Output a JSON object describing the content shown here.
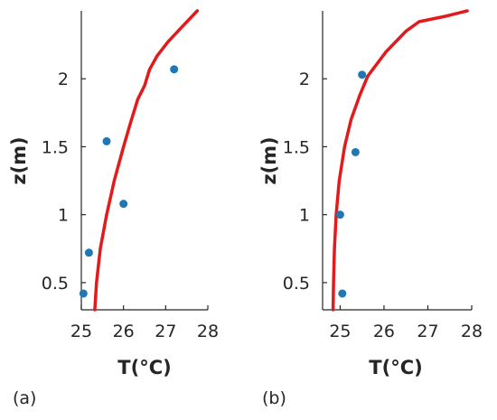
{
  "colors": {
    "model_line": "#e31a1c",
    "observation_marker": "#1f77b4",
    "axis": "#262626"
  },
  "chart_data": [
    {
      "type": "line",
      "panel_label": "(a)",
      "xlabel": "T(°C)",
      "ylabel": "z(m)",
      "xlim": [
        25,
        28
      ],
      "ylim": [
        0.3,
        2.5
      ],
      "xticks": [
        25,
        26,
        27,
        28
      ],
      "xtick_labels": [
        "25",
        "26",
        "27",
        "28"
      ],
      "yticks": [
        0.5,
        1,
        1.5,
        2
      ],
      "ytick_labels": [
        "0.5",
        "1",
        "1.5",
        "2"
      ],
      "grid": false,
      "series": [
        {
          "kind": "line",
          "x": [
            25.32,
            25.36,
            25.45,
            25.6,
            25.78,
            26.0,
            26.17,
            26.34,
            26.5,
            26.62,
            26.8,
            27.05,
            27.35,
            27.75
          ],
          "y": [
            0.3,
            0.5,
            0.75,
            1.0,
            1.25,
            1.5,
            1.68,
            1.85,
            1.95,
            2.07,
            2.17,
            2.27,
            2.37,
            2.5
          ]
        },
        {
          "kind": "scatter",
          "x": [
            25.05,
            25.18,
            26.0,
            25.6,
            27.2
          ],
          "y": [
            0.42,
            0.72,
            1.08,
            1.54,
            2.07
          ]
        }
      ]
    },
    {
      "type": "line",
      "panel_label": "(b)",
      "xlabel": "T(°C)",
      "ylabel": "z(m)",
      "xlim": [
        24.6,
        28
      ],
      "ylim": [
        0.3,
        2.5
      ],
      "xticks": [
        25,
        26,
        27,
        28
      ],
      "xtick_labels": [
        "25",
        "26",
        "27",
        "28"
      ],
      "yticks": [
        0.5,
        1,
        1.5,
        2
      ],
      "ytick_labels": [
        "0.5",
        "1",
        "1.5",
        "2"
      ],
      "grid": false,
      "series": [
        {
          "kind": "line",
          "x": [
            24.84,
            24.85,
            24.87,
            24.91,
            24.98,
            25.1,
            25.25,
            25.45,
            25.63,
            26.05,
            26.5,
            26.8,
            27.4,
            27.9
          ],
          "y": [
            0.3,
            0.5,
            0.75,
            1.0,
            1.25,
            1.5,
            1.7,
            1.88,
            2.02,
            2.2,
            2.35,
            2.42,
            2.46,
            2.5
          ]
        },
        {
          "kind": "scatter",
          "x": [
            25.05,
            25.0,
            25.35,
            25.5
          ],
          "y": [
            0.42,
            1.0,
            1.46,
            2.03
          ]
        }
      ]
    }
  ]
}
